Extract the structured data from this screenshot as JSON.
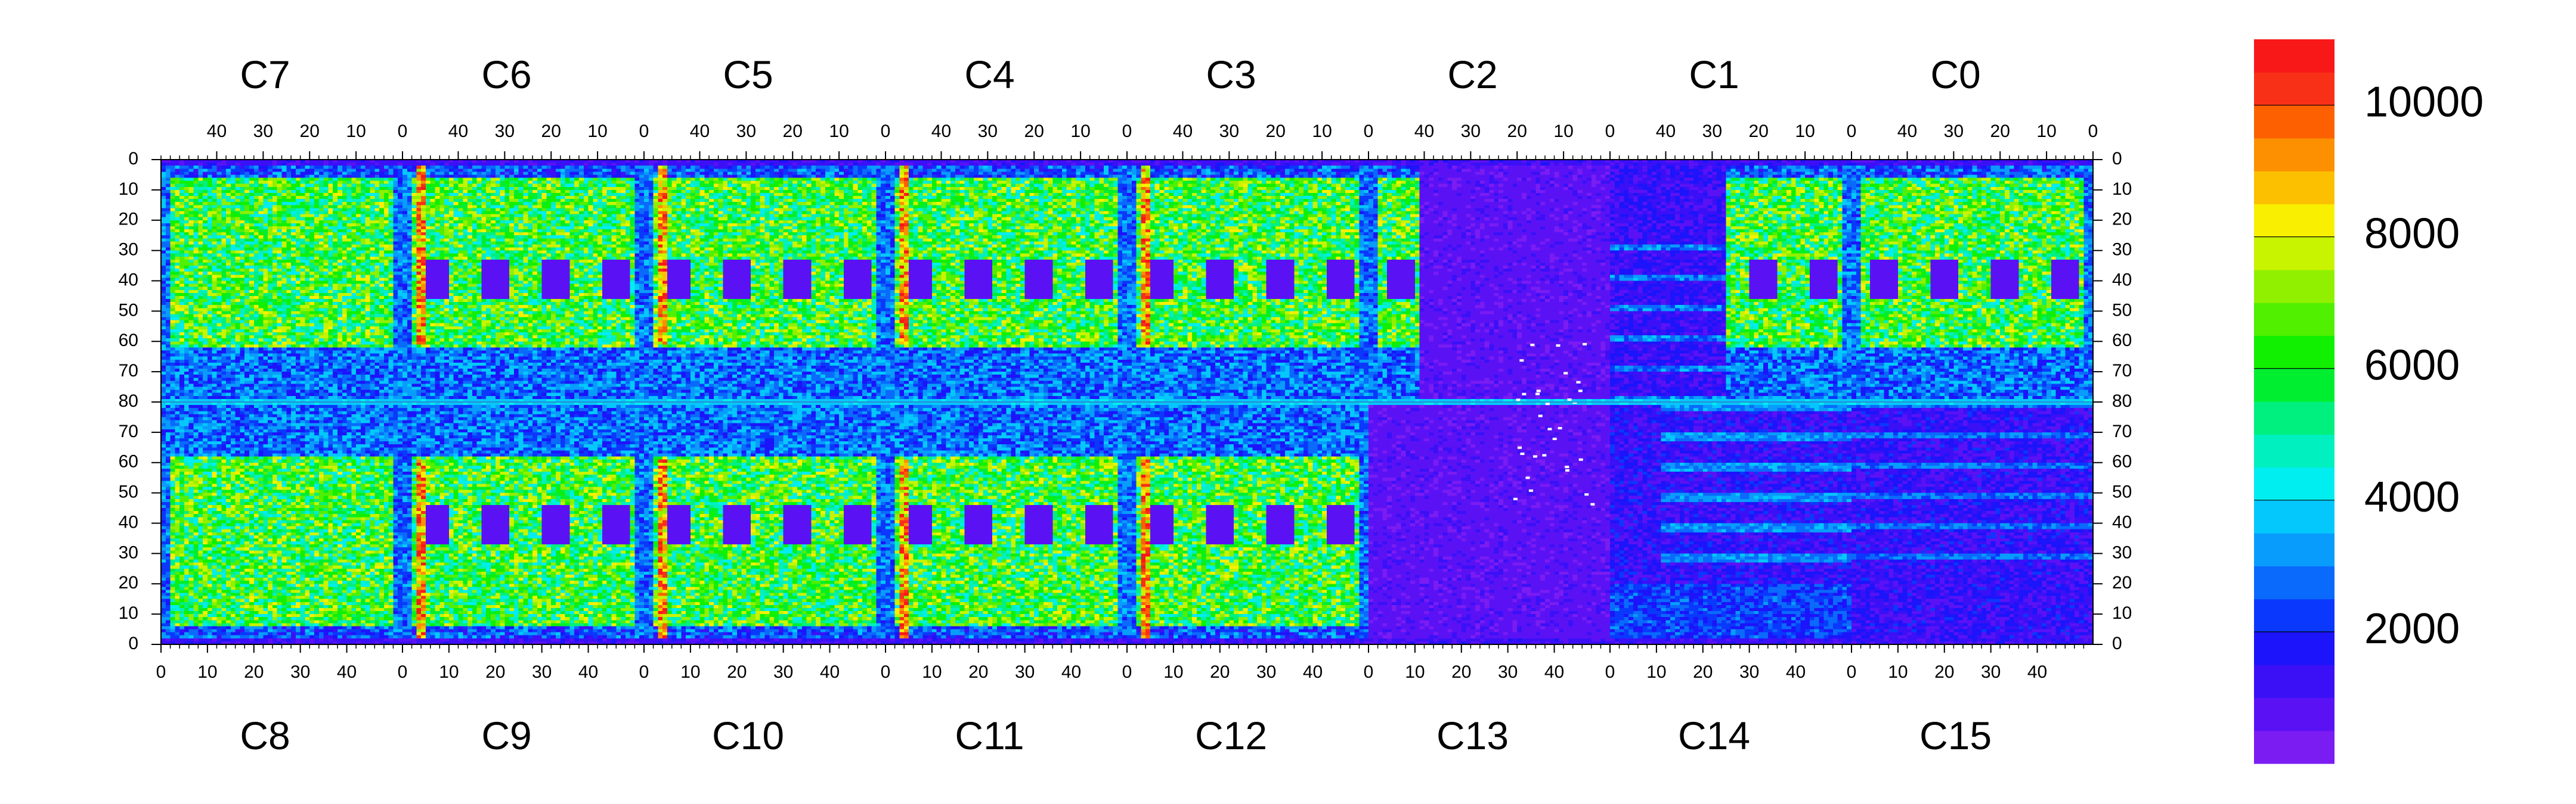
{
  "chart_data": {
    "type": "heatmap",
    "title": "",
    "top_chip_labels": [
      "C7",
      "C6",
      "C5",
      "C4",
      "C3",
      "C2",
      "C1",
      "C0"
    ],
    "bottom_chip_labels": [
      "C8",
      "C9",
      "C10",
      "C11",
      "C12",
      "C13",
      "C14",
      "C15"
    ],
    "top_axis_ticks": [
      "40",
      "30",
      "20",
      "10",
      "0"
    ],
    "bottom_axis_ticks": [
      "0",
      "10",
      "20",
      "30",
      "40"
    ],
    "left_axis_ticks": [
      "0",
      "10",
      "20",
      "30",
      "40",
      "50",
      "60",
      "70",
      "80",
      "70",
      "60",
      "50",
      "40",
      "30",
      "20",
      "10",
      "0"
    ],
    "right_axis_ticks": [
      "0",
      "10",
      "20",
      "30",
      "40",
      "50",
      "60",
      "70",
      "80",
      "70",
      "60",
      "50",
      "40",
      "30",
      "20",
      "10",
      "0"
    ],
    "chip_columns": 52,
    "rows_per_half": 80,
    "colorbar": {
      "min": 0,
      "max": 11000,
      "labels": [
        "2000",
        "4000",
        "6000",
        "8000",
        "10000"
      ],
      "label_values": [
        2000,
        4000,
        6000,
        8000,
        10000
      ],
      "levels": 20,
      "colors": [
        "#7a1cf2",
        "#5a12f5",
        "#3b10f7",
        "#1c14fa",
        "#0a38fc",
        "#0a6afc",
        "#089cfc",
        "#04c8fc",
        "#00eef0",
        "#00f0c0",
        "#00f080",
        "#00ee30",
        "#10f000",
        "#50f000",
        "#90f000",
        "#c8f400",
        "#f8f000",
        "#fcc000",
        "#fc9000",
        "#fc6000",
        "#f83018",
        "#f81818"
      ]
    },
    "regions": {
      "hot_boundary_columns_at_x0": true,
      "low_occupancy_chips": [
        "C13",
        "C14",
        "C15",
        "C1"
      ],
      "saturated_pixels_chip": "C13"
    }
  }
}
